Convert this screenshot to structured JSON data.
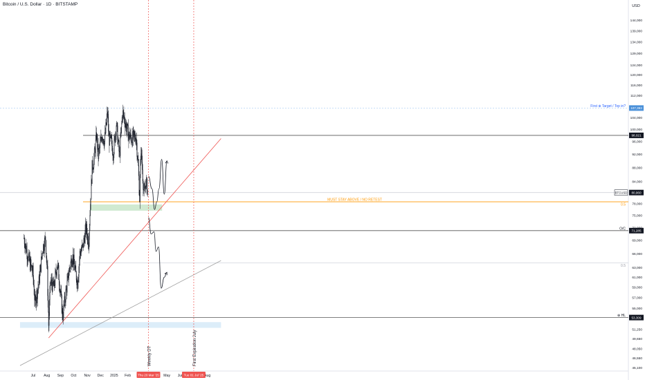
{
  "header": {
    "title": "Bitcoin / U.S. Dollar · 1D · BITSTAMP",
    "currency": "USD"
  },
  "chart_data": {
    "type": "candlestick",
    "y_axis": {
      "scale": "log",
      "ylim": [
        45100,
        152000
      ],
      "ticks": [
        45100,
        46550,
        48050,
        49650,
        51250,
        53309,
        55000,
        57000,
        59000,
        61000,
        63000,
        66000,
        69000,
        71285,
        72000,
        75000,
        78000,
        80960,
        84000,
        88000,
        92000,
        96000,
        98021,
        100000,
        104000,
        107393,
        112000,
        116000,
        120000,
        124000,
        129000,
        134000,
        139000,
        144000,
        150000
      ],
      "tick_labels": [
        "45,100",
        "46,550",
        "48,050",
        "49,650",
        "51,250",
        "53,309",
        "55,000",
        "57,000",
        "59,000",
        "61,000",
        "63,000",
        "66,000",
        "69,000",
        "71,285",
        "72,000",
        "75,000",
        "78,000",
        "80,960",
        "84,000",
        "88,000",
        "92,000",
        "96,000",
        "98,021",
        "100,000",
        "104,000",
        "107,393",
        "112,000",
        "116,000",
        "120,000",
        "124,000",
        "129,000",
        "134,000",
        "139,000",
        "144,000",
        "150,000"
      ]
    },
    "x_axis": {
      "ticks": [
        {
          "label": "Jul",
          "date": "2024-07-01"
        },
        {
          "label": "Aug",
          "date": "2024-08-01"
        },
        {
          "label": "Sep",
          "date": "2024-09-01"
        },
        {
          "label": "Oct",
          "date": "2024-10-01"
        },
        {
          "label": "Nov",
          "date": "2024-11-01"
        },
        {
          "label": "Dec",
          "date": "2024-12-01"
        },
        {
          "label": "2025",
          "date": "2025-01-01"
        },
        {
          "label": "Feb",
          "date": "2025-02-01"
        },
        {
          "label": "Mar",
          "date": "2025-03-01"
        },
        {
          "label": "Apr",
          "date": "2025-04-01"
        },
        {
          "label": "May",
          "date": "2025-05-01"
        },
        {
          "label": "Jun",
          "date": "2025-06-01"
        },
        {
          "label": "Jul",
          "date": "2025-07-01"
        },
        {
          "label": "Aug",
          "date": "2025-08-01"
        }
      ],
      "date_badges": [
        {
          "label": "Thu 20 Mar '25",
          "date": "2025-03-20"
        },
        {
          "label": "Tue 01 Jul '25",
          "date": "2025-07-01"
        }
      ]
    },
    "price_path": [
      [
        "2024-06-10",
        69500
      ],
      [
        "2024-06-20",
        65000
      ],
      [
        "2024-06-30",
        62000
      ],
      [
        "2024-07-05",
        56000
      ],
      [
        "2024-07-14",
        60000
      ],
      [
        "2024-07-22",
        67000
      ],
      [
        "2024-07-29",
        69500
      ],
      [
        "2024-08-02",
        62000
      ],
      [
        "2024-08-05",
        52000
      ],
      [
        "2024-08-09",
        60000
      ],
      [
        "2024-08-17",
        59000
      ],
      [
        "2024-08-25",
        64000
      ],
      [
        "2024-09-01",
        58000
      ],
      [
        "2024-09-06",
        53500
      ],
      [
        "2024-09-14",
        58500
      ],
      [
        "2024-09-22",
        63000
      ],
      [
        "2024-09-28",
        65800
      ],
      [
        "2024-10-05",
        62000
      ],
      [
        "2024-10-10",
        60000
      ],
      [
        "2024-10-15",
        66000
      ],
      [
        "2024-10-22",
        67500
      ],
      [
        "2024-10-29",
        72000
      ],
      [
        "2024-11-04",
        68500
      ],
      [
        "2024-11-07",
        76000
      ],
      [
        "2024-11-12",
        88000
      ],
      [
        "2024-11-16",
        90500
      ],
      [
        "2024-11-22",
        98000
      ],
      [
        "2024-11-26",
        91500
      ],
      [
        "2024-12-05",
        98500
      ],
      [
        "2024-12-10",
        96000
      ],
      [
        "2024-12-17",
        106000
      ],
      [
        "2024-12-20",
        97000
      ],
      [
        "2024-12-26",
        95500
      ],
      [
        "2024-12-30",
        92500
      ],
      [
        "2025-01-06",
        102000
      ],
      [
        "2025-01-13",
        91500
      ],
      [
        "2025-01-20",
        106000
      ],
      [
        "2025-01-27",
        102000
      ],
      [
        "2025-02-03",
        98000
      ],
      [
        "2025-02-10",
        97000
      ],
      [
        "2025-02-20",
        97500
      ],
      [
        "2025-02-25",
        88000
      ],
      [
        "2025-02-28",
        79500
      ],
      [
        "2025-03-03",
        94000
      ],
      [
        "2025-03-10",
        80000
      ],
      [
        "2025-03-14",
        84000
      ],
      [
        "2025-03-18",
        81700
      ]
    ],
    "horizontal_levels": [
      {
        "price": 107393,
        "label": "First ⊕ Target / Top in?",
        "badge": "107,393"
      },
      {
        "price": 98021,
        "badge": "98,021"
      },
      {
        "price": 80960,
        "badge": "BTCUSD",
        "value_label": "80,960"
      },
      {
        "price": 78500,
        "label": "MUST STAY ABOVE / NO RETEST",
        "level_label": "0.5"
      },
      {
        "price": 71285,
        "label": "O/C",
        "badge": "71,285"
      },
      {
        "price": 64000,
        "level_label": "0.5"
      },
      {
        "price": 53309,
        "label": "⊕ HL",
        "badge": "53,309"
      }
    ],
    "zones": [
      {
        "price_from": 76200,
        "price_to": 77800,
        "date_from": "2024-11-07",
        "date_to": "2025-04-20",
        "color": "#c8e6c9"
      },
      {
        "price_from": 51500,
        "price_to": 52500,
        "date_from": "2024-06-01",
        "date_to": "2025-09-01",
        "color": "#d6eaf8"
      }
    ],
    "trendlines": [
      {
        "from": [
          "2024-08-05",
          49800
        ],
        "to": [
          "2025-09-01",
          97000
        ],
        "color": "#ef5350"
      },
      {
        "from": [
          "2024-06-01",
          45400
        ],
        "to": [
          "2025-09-01",
          64500
        ],
        "color": "#9e9e9e"
      }
    ],
    "vertical_markers": [
      {
        "date": "2025-03-20",
        "label": "Weekly DT"
      },
      {
        "date": "2025-07-01",
        "label": "First Expiration July"
      }
    ],
    "projection_bull": [
      [
        "2025-03-20",
        85500
      ],
      [
        "2025-03-28",
        82000
      ],
      [
        "2025-04-03",
        76500
      ],
      [
        "2025-04-08",
        78500
      ],
      [
        "2025-04-13",
        82000
      ],
      [
        "2025-04-19",
        90500
      ],
      [
        "2025-04-25",
        80500
      ],
      [
        "2025-05-01",
        90000
      ]
    ],
    "projection_bear": [
      [
        "2025-03-20",
        74500
      ],
      [
        "2025-03-26",
        70500
      ],
      [
        "2025-04-02",
        71000
      ],
      [
        "2025-04-06",
        66500
      ],
      [
        "2025-04-12",
        67500
      ],
      [
        "2025-04-18",
        58800
      ],
      [
        "2025-04-25",
        61000
      ],
      [
        "2025-05-01",
        62000
      ]
    ],
    "colors": {
      "up": "#131722",
      "down": "#131722",
      "bull_wick": "#131722"
    }
  }
}
